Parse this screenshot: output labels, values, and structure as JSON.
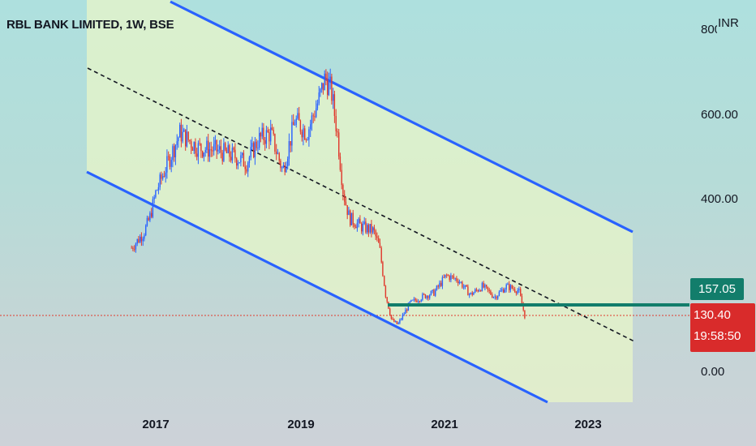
{
  "title": "RBL BANK LIMITED, 1W, BSE",
  "currency": "INR",
  "colors": {
    "channel_line": "#2962ff",
    "channel_fill": "#e8f5c8",
    "midline": "#131722",
    "support_line": "#127d6b",
    "candle_up": "#2962ff",
    "candle_down": "#e0392d",
    "last_price_line": "#e0392d",
    "tag_green": "#127d6b",
    "tag_red": "#d92b2b"
  },
  "price_axis": {
    "ticks": [
      "800.00",
      "600.00",
      "400.00",
      "0.00"
    ]
  },
  "time_axis": {
    "ticks": [
      "2017",
      "2019",
      "2021",
      "2023"
    ]
  },
  "tags": {
    "support_price": "157.05",
    "last_price": "130.40",
    "countdown": "19:58:50"
  },
  "chart_data": {
    "type": "candlestick",
    "title": "RBL BANK LIMITED, 1W, BSE",
    "ylabel": "INR",
    "ylim": [
      -80,
      820
    ],
    "x_ticks": [
      "2017",
      "2019",
      "2021",
      "2023"
    ],
    "series": [
      {
        "name": "RBL BANK LIMITED",
        "points": [
          {
            "date": "2016-09",
            "price": 290
          },
          {
            "date": "2016-11",
            "price": 325
          },
          {
            "date": "2016-12",
            "price": 360
          },
          {
            "date": "2017-01",
            "price": 420
          },
          {
            "date": "2017-03",
            "price": 490
          },
          {
            "date": "2017-05",
            "price": 560
          },
          {
            "date": "2017-08",
            "price": 525
          },
          {
            "date": "2017-11",
            "price": 520
          },
          {
            "date": "2018-02",
            "price": 505
          },
          {
            "date": "2018-04",
            "price": 490
          },
          {
            "date": "2018-06",
            "price": 545
          },
          {
            "date": "2018-08",
            "price": 560
          },
          {
            "date": "2018-10",
            "price": 470
          },
          {
            "date": "2018-12",
            "price": 590
          },
          {
            "date": "2019-02",
            "price": 560
          },
          {
            "date": "2019-04",
            "price": 640
          },
          {
            "date": "2019-05",
            "price": 690
          },
          {
            "date": "2019-06",
            "price": 660
          },
          {
            "date": "2019-07",
            "price": 560
          },
          {
            "date": "2019-08",
            "price": 420
          },
          {
            "date": "2019-09",
            "price": 360
          },
          {
            "date": "2019-11",
            "price": 340
          },
          {
            "date": "2020-01",
            "price": 330
          },
          {
            "date": "2020-02",
            "price": 290
          },
          {
            "date": "2020-03",
            "price": 180
          },
          {
            "date": "2020-04",
            "price": 120
          },
          {
            "date": "2020-05",
            "price": 110
          },
          {
            "date": "2020-07",
            "price": 160
          },
          {
            "date": "2020-09",
            "price": 175
          },
          {
            "date": "2020-11",
            "price": 185
          },
          {
            "date": "2021-01",
            "price": 225
          },
          {
            "date": "2021-03",
            "price": 215
          },
          {
            "date": "2021-05",
            "price": 180
          },
          {
            "date": "2021-07",
            "price": 200
          },
          {
            "date": "2021-09",
            "price": 175
          },
          {
            "date": "2021-11",
            "price": 200
          },
          {
            "date": "2022-01",
            "price": 190
          },
          {
            "date": "2022-02",
            "price": 130
          }
        ]
      }
    ],
    "support_level": 157.05,
    "last_price": 130.4
  }
}
